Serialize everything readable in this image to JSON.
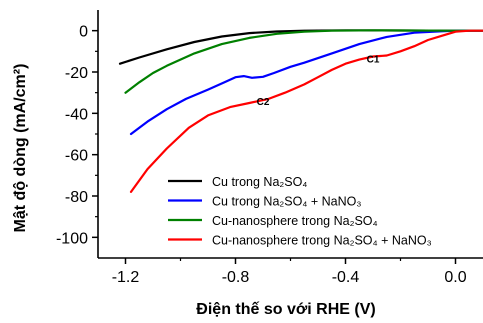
{
  "chart_data": {
    "type": "line",
    "xlabel": "Điện thế so với RHE (V)",
    "ylabel": "Mật độ dòng (mA/cm²)",
    "xlim": [
      -1.3,
      0.1
    ],
    "ylim": [
      -110,
      10
    ],
    "x_ticks": [
      -1.2,
      -0.8,
      -0.4,
      0.0
    ],
    "x_tick_labels": [
      "-1.2",
      "-0.8",
      "-0.4",
      "0.0"
    ],
    "y_ticks": [
      0,
      -20,
      -40,
      -60,
      -80,
      -100
    ],
    "y_tick_labels": [
      "0",
      "-20",
      "-40",
      "-60",
      "-80",
      "-100"
    ],
    "grid": false,
    "legend_position": "bottom-right",
    "series": [
      {
        "name": "Cu trong Na₂SO₄",
        "color": "#000000",
        "points": [
          [
            -1.22,
            -16.0
          ],
          [
            -1.15,
            -13.0
          ],
          [
            -1.05,
            -9.0
          ],
          [
            -0.95,
            -5.5
          ],
          [
            -0.85,
            -2.8
          ],
          [
            -0.75,
            -1.2
          ],
          [
            -0.65,
            -0.4
          ],
          [
            -0.55,
            0.0
          ],
          [
            -0.4,
            0.2
          ],
          [
            -0.2,
            0.1
          ],
          [
            0.0,
            0.0
          ],
          [
            0.1,
            0.0
          ]
        ]
      },
      {
        "name": "Cu trong Na₂SO₄ + NaNO₃",
        "color": "#0000ff",
        "points": [
          [
            -1.18,
            -50.0
          ],
          [
            -1.12,
            -44.0
          ],
          [
            -1.05,
            -38.0
          ],
          [
            -0.98,
            -33.0
          ],
          [
            -0.9,
            -28.5
          ],
          [
            -0.84,
            -25.0
          ],
          [
            -0.8,
            -22.5
          ],
          [
            -0.77,
            -22.0
          ],
          [
            -0.74,
            -22.8
          ],
          [
            -0.7,
            -22.3
          ],
          [
            -0.66,
            -20.5
          ],
          [
            -0.6,
            -17.5
          ],
          [
            -0.55,
            -15.5
          ],
          [
            -0.45,
            -11.0
          ],
          [
            -0.35,
            -6.5
          ],
          [
            -0.25,
            -3.0
          ],
          [
            -0.15,
            -1.0
          ],
          [
            -0.05,
            -0.3
          ],
          [
            0.0,
            0.0
          ],
          [
            0.1,
            0.0
          ]
        ]
      },
      {
        "name": "Cu-nanosphere trong Na₂SO₄",
        "color": "#008000",
        "points": [
          [
            -1.2,
            -30.0
          ],
          [
            -1.15,
            -25.0
          ],
          [
            -1.1,
            -20.5
          ],
          [
            -1.05,
            -17.0
          ],
          [
            -0.95,
            -11.0
          ],
          [
            -0.85,
            -6.5
          ],
          [
            -0.75,
            -3.5
          ],
          [
            -0.65,
            -1.5
          ],
          [
            -0.55,
            -0.5
          ],
          [
            -0.45,
            0.0
          ],
          [
            -0.3,
            0.2
          ],
          [
            0.0,
            0.0
          ],
          [
            0.1,
            0.0
          ]
        ]
      },
      {
        "name": "Cu-nanosphere trong Na₂SO₄ + NaNO₃",
        "color": "#ff0000",
        "points": [
          [
            -1.18,
            -78.0
          ],
          [
            -1.12,
            -67.0
          ],
          [
            -1.05,
            -57.0
          ],
          [
            -0.97,
            -47.0
          ],
          [
            -0.9,
            -41.0
          ],
          [
            -0.82,
            -37.0
          ],
          [
            -0.75,
            -35.0
          ],
          [
            -0.68,
            -33.0
          ],
          [
            -0.62,
            -30.0
          ],
          [
            -0.55,
            -26.0
          ],
          [
            -0.5,
            -22.5
          ],
          [
            -0.45,
            -19.0
          ],
          [
            -0.4,
            -16.0
          ],
          [
            -0.35,
            -14.0
          ],
          [
            -0.3,
            -12.5
          ],
          [
            -0.25,
            -12.0
          ],
          [
            -0.2,
            -10.0
          ],
          [
            -0.15,
            -7.5
          ],
          [
            -0.1,
            -4.5
          ],
          [
            -0.05,
            -2.5
          ],
          [
            0.0,
            -0.5
          ],
          [
            0.05,
            0.0
          ],
          [
            0.1,
            0.0
          ]
        ]
      }
    ],
    "annotations": [
      {
        "text": "C1",
        "x": -0.3,
        "y": -15.5
      },
      {
        "text": "C2",
        "x": -0.7,
        "y": -36.0
      }
    ]
  }
}
